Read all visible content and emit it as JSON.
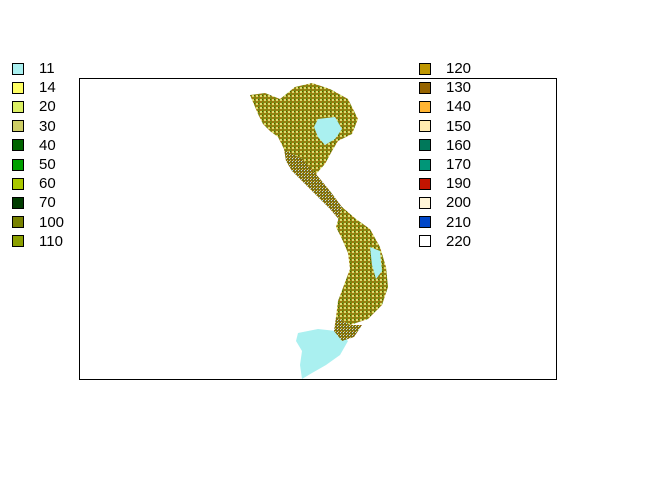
{
  "map": {
    "legend_left": [
      {
        "label": "11",
        "color": "#aaf0f0"
      },
      {
        "label": "14",
        "color": "#ffff64"
      },
      {
        "label": "20",
        "color": "#dcf064"
      },
      {
        "label": "30",
        "color": "#cdcd66"
      },
      {
        "label": "40",
        "color": "#006400"
      },
      {
        "label": "50",
        "color": "#00a000"
      },
      {
        "label": "60",
        "color": "#aac800"
      },
      {
        "label": "70",
        "color": "#003c00"
      },
      {
        "label": "100",
        "color": "#788200"
      },
      {
        "label": "110",
        "color": "#8ca000"
      }
    ],
    "legend_right": [
      {
        "label": "120",
        "color": "#be9600"
      },
      {
        "label": "130",
        "color": "#966400"
      },
      {
        "label": "140",
        "color": "#ffb432"
      },
      {
        "label": "150",
        "color": "#ffebaf"
      },
      {
        "label": "160",
        "color": "#00785a"
      },
      {
        "label": "170",
        "color": "#009678"
      },
      {
        "label": "190",
        "color": "#c31400"
      },
      {
        "label": "200",
        "color": "#fff5d7"
      },
      {
        "label": "210",
        "color": "#0046c8"
      },
      {
        "label": "220",
        "color": "#ffffff"
      }
    ]
  }
}
